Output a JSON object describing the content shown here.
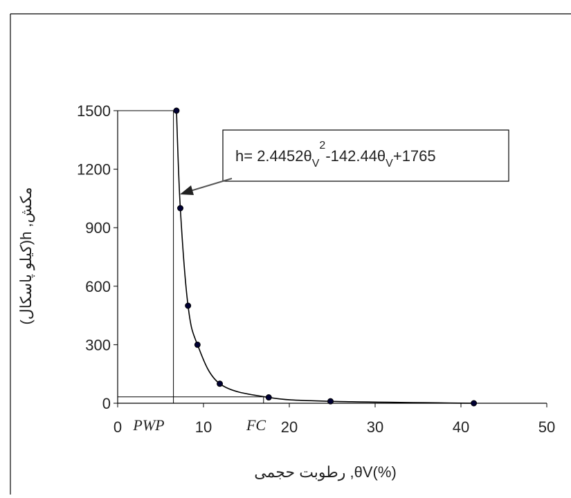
{
  "chart_data": {
    "type": "scatter",
    "x_label": "رطوبت حجمی ,θV(%)",
    "y_label": "(کیلو پاسکال)h ,مکش",
    "equation": {
      "lhs": "h= 2.4452θ",
      "sub1": "V",
      "sup": "2",
      "mid": "-142.44θ",
      "sub2": "V",
      "rhs": "+1765"
    },
    "series": [
      {
        "color": "#000033",
        "x": [
          6.85,
          7.3,
          8.2,
          9.3,
          11.9,
          17.6,
          24.8,
          41.5
        ],
        "values": [
          1500,
          1000,
          500,
          300,
          100,
          30,
          10,
          0
        ]
      }
    ],
    "pwp": {
      "label": "PWP",
      "x": 6.5,
      "y": 1500
    },
    "fc": {
      "label": "FC",
      "x": 17,
      "y": 33
    },
    "xlim": [
      0,
      50
    ],
    "xticks": [
      0,
      10,
      20,
      30,
      40,
      50
    ],
    "ylim": [
      0,
      1500
    ],
    "yticks": [
      0,
      300,
      600,
      900,
      1200,
      1500
    ]
  }
}
